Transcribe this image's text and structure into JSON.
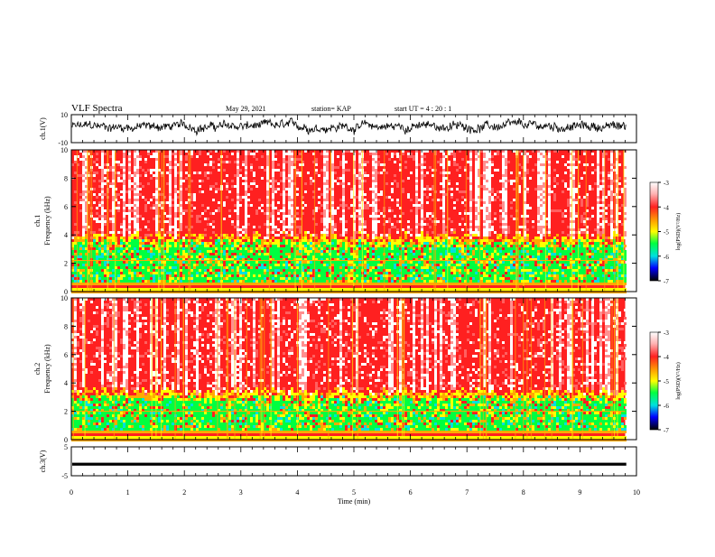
{
  "header": {
    "title": "VLF Spectra",
    "date": "May 29, 2021",
    "station": "station= KAP",
    "start": "start  UT =  4 : 20 : 1"
  },
  "chart_data": [
    {
      "type": "line",
      "panel": "ch1-waveform",
      "ylabel": "ch.1(V)",
      "ylim": [
        -10,
        10
      ],
      "yticks": [
        -10,
        10
      ],
      "xlim": [
        0,
        10
      ],
      "trace_mean": 1.5,
      "trace_range": [
        -8,
        10
      ],
      "color": "#000000"
    },
    {
      "type": "heatmap",
      "panel": "ch1-spectrogram",
      "ylabel": "ch.1\nFrequency (kHz)",
      "ylim": [
        0,
        10
      ],
      "yticks": [
        0,
        2,
        4,
        6,
        8,
        10
      ],
      "xlim": [
        0,
        10
      ],
      "data_end_min": 9.8,
      "colorbar": {
        "label": "log(PSD)(V²/Hz)",
        "ticks": [
          -3,
          -4,
          -5,
          -6,
          -7
        ],
        "range": [
          -7,
          -3
        ]
      },
      "bands": [
        {
          "from_khz": 0.0,
          "to_khz": 0.8,
          "level": "strong-low-freq"
        },
        {
          "from_khz": 0.8,
          "to_khz": 3.5,
          "level": "green"
        },
        {
          "from_khz": 3.5,
          "to_khz": 10.0,
          "level": "red-white"
        }
      ],
      "lines_khz": [
        2.2
      ]
    },
    {
      "type": "heatmap",
      "panel": "ch2-spectrogram",
      "ylabel": "ch.2\nFrequency (kHz)",
      "ylim": [
        0,
        10
      ],
      "yticks": [
        0,
        2,
        4,
        6,
        8,
        10
      ],
      "xlim": [
        0,
        10
      ],
      "data_end_min": 9.8,
      "colorbar": {
        "label": "log(PSD)(V²/Hz)",
        "ticks": [
          -3,
          -4,
          -5,
          -6,
          -7
        ],
        "range": [
          -7,
          -3
        ]
      },
      "bands": [
        {
          "from_khz": 0.0,
          "to_khz": 0.8,
          "level": "strong-low-freq"
        },
        {
          "from_khz": 0.8,
          "to_khz": 3.0,
          "level": "green"
        },
        {
          "from_khz": 3.0,
          "to_khz": 10.0,
          "level": "red-white"
        }
      ],
      "lines_khz": [
        2.0
      ]
    },
    {
      "type": "line",
      "panel": "ch3-waveform",
      "ylabel": "ch.3(V)",
      "ylim": [
        -5,
        5
      ],
      "yticks": [
        -5,
        5
      ],
      "xlim": [
        0,
        10
      ],
      "trace_mean": -1.0,
      "trace_range": [
        -1.5,
        -0.5
      ],
      "xlabel": "Time (min)",
      "xticks": [
        0,
        1,
        2,
        3,
        4,
        5,
        6,
        7,
        8,
        9,
        10
      ],
      "color": "#000000"
    }
  ],
  "colors": {
    "red": "#ff2020",
    "white": "#ffffff",
    "orange": "#ffaa00",
    "yellow": "#ffff00",
    "green": "#00ff40",
    "cyan": "#00e0e0",
    "blue": "#0000ff",
    "black": "#000000"
  }
}
